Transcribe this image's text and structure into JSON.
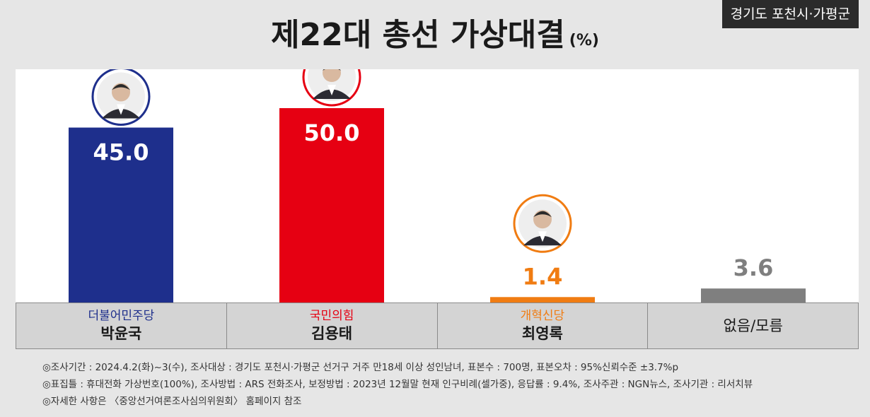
{
  "header": {
    "region": "경기도 포천시·가평군",
    "title": "제22대 총선 가상대결",
    "unit": "(%)"
  },
  "candidates": [
    {
      "party": "더불어민주당",
      "name": "박윤국",
      "value_label": "45.0",
      "color": "#1e2f8c",
      "party_color": "#1e2f8c"
    },
    {
      "party": "국민의힘",
      "name": "김용태",
      "value_label": "50.0",
      "color": "#e60012",
      "party_color": "#e60012"
    },
    {
      "party": "개혁신당",
      "name": "최영록",
      "value_label": "1.4",
      "color": "#f07c12",
      "party_color": "#f07c12"
    },
    {
      "party": "",
      "name": "없음/모름",
      "value_label": "3.6",
      "color": "#7f7f7f",
      "party_color": "#7f7f7f"
    }
  ],
  "chart_data": {
    "type": "bar",
    "title": "제22대 총선 가상대결",
    "ylabel": "(%)",
    "categories": [
      "박윤국",
      "김용태",
      "최영록",
      "없음/모름"
    ],
    "values": [
      45.0,
      50.0,
      1.4,
      3.6
    ],
    "ylim": [
      0,
      60
    ],
    "grid": false,
    "colors": [
      "#1e2f8c",
      "#e60012",
      "#f07c12",
      "#7f7f7f"
    ]
  },
  "notes": [
    "◎조사기간 : 2024.4.2(화)~3(수), 조사대상 : 경기도 포천시·가평군 선거구 거주 만18세 이상 성인남녀, 표본수 : 700명, 표본오차 : 95%신뢰수준 ±3.7%p",
    "◎표집틀 : 휴대전화 가상번호(100%), 조사방법 : ARS 전화조사, 보정방법 : 2023년 12월말 현재 인구비례(셀가중), 응답률 : 9.4%, 조사주관 : NGN뉴스, 조사기관 : 리서치뷰",
    "◎자세한 사항은 〈중앙선거여론조사심의위원회〉 홈페이지 참조"
  ]
}
